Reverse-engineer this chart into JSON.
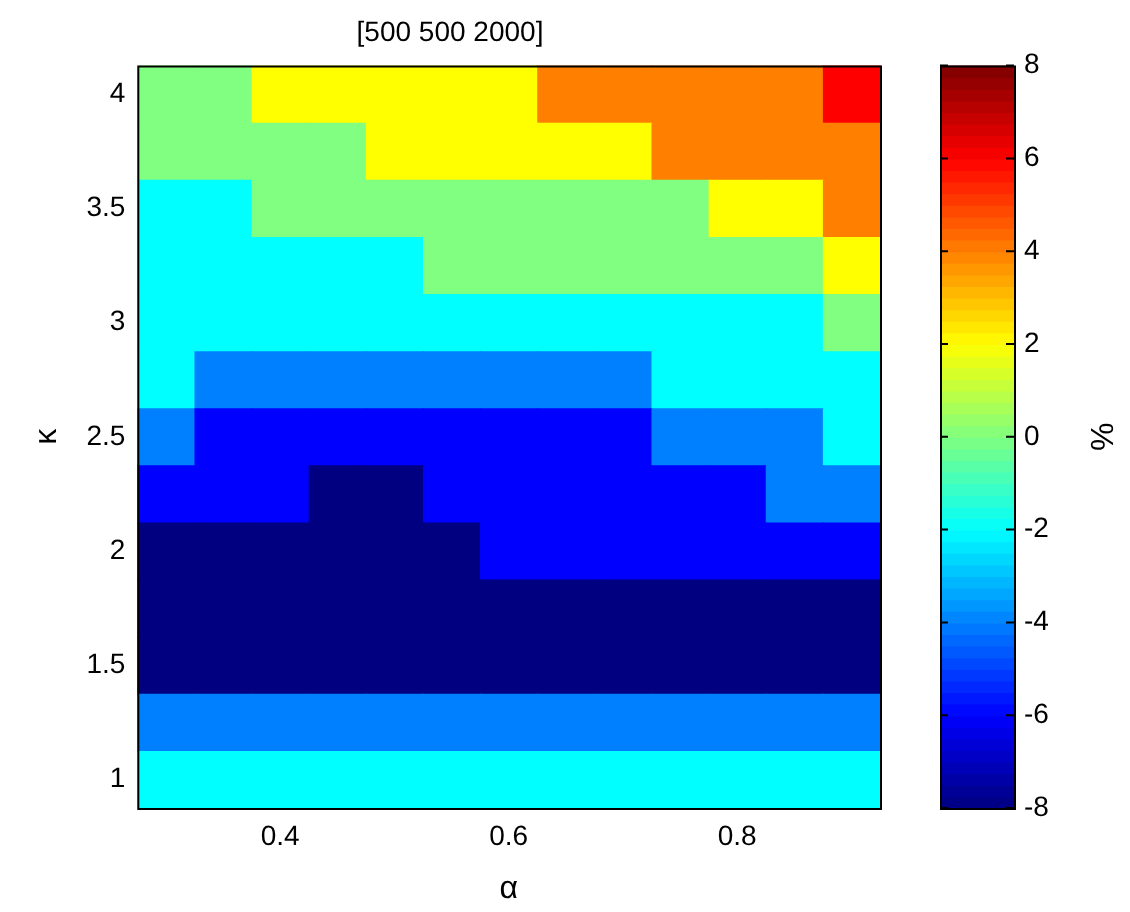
{
  "chart_data": {
    "type": "heatmap",
    "title": "[500 500 2000]",
    "xlabel": "α",
    "ylabel": "κ",
    "clabel": "%",
    "categories": [
      null,
      null,
      "0.4",
      null,
      null,
      null,
      "0.6",
      null,
      null,
      null,
      "0.8",
      null,
      null
    ],
    "y_categories": [
      "4",
      null,
      "3.5",
      null,
      "3",
      null,
      "2.5",
      null,
      "2",
      null,
      "1.5",
      null,
      "1"
    ],
    "cells": [
      [
        0,
        0,
        2,
        2,
        2,
        2,
        2,
        4,
        4,
        4,
        4,
        4,
        6
      ],
      [
        0,
        0,
        0,
        0,
        2,
        2,
        2,
        2,
        2,
        4,
        4,
        4,
        4
      ],
      [
        -2,
        -2,
        0,
        0,
        0,
        0,
        0,
        0,
        0,
        0,
        2,
        2,
        4
      ],
      [
        -2,
        -2,
        -2,
        -2,
        -2,
        0,
        0,
        0,
        0,
        0,
        0,
        0,
        2
      ],
      [
        -2,
        -2,
        -2,
        -2,
        -2,
        -2,
        -2,
        -2,
        -2,
        -2,
        -2,
        -2,
        0
      ],
      [
        -2,
        -4,
        -4,
        -4,
        -4,
        -4,
        -4,
        -4,
        -4,
        -2,
        -2,
        -2,
        -2
      ],
      [
        -4,
        -6,
        -6,
        -6,
        -6,
        -6,
        -6,
        -6,
        -6,
        -4,
        -4,
        -4,
        -2
      ],
      [
        -6,
        -6,
        -6,
        -8,
        -8,
        -6,
        -6,
        -6,
        -6,
        -6,
        -6,
        -4,
        -4
      ],
      [
        -8,
        -8,
        -8,
        -8,
        -8,
        -8,
        -6,
        -6,
        -6,
        -6,
        -6,
        -6,
        -6
      ],
      [
        -8,
        -8,
        -8,
        -8,
        -8,
        -8,
        -8,
        -8,
        -8,
        -8,
        -8,
        -8,
        -8
      ],
      [
        -8,
        -8,
        -8,
        -8,
        -8,
        -8,
        -8,
        -8,
        -8,
        -8,
        -8,
        -8,
        -8
      ],
      [
        -4,
        -4,
        -4,
        -4,
        -4,
        -4,
        -4,
        -4,
        -4,
        -4,
        -4,
        -4,
        -4
      ],
      [
        -2,
        -2,
        -2,
        -2,
        -2,
        -2,
        -2,
        -2,
        -2,
        -2,
        -2,
        -2,
        -2
      ]
    ],
    "clim": [
      -8,
      8
    ],
    "cticks": [
      -8,
      -6,
      -4,
      -2,
      0,
      2,
      4,
      6,
      8
    ]
  }
}
